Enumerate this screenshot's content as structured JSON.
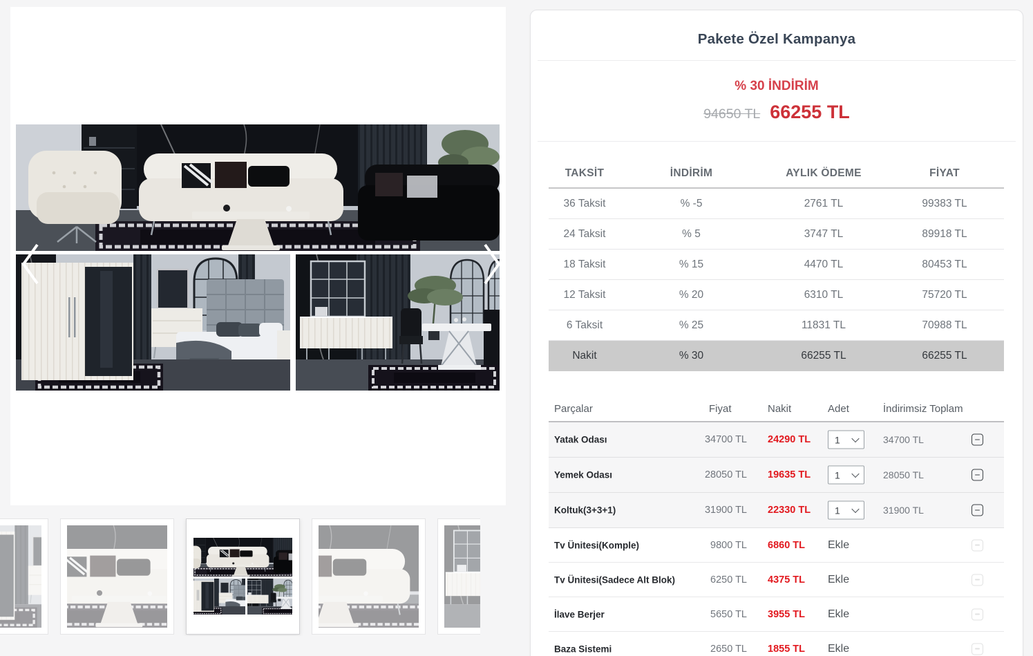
{
  "gallery": {
    "thumbnails": [
      {
        "name": "bedroom-detail",
        "selected": false
      },
      {
        "name": "living-room",
        "selected": false
      },
      {
        "name": "full-set-collage",
        "selected": true
      },
      {
        "name": "living-room-dark",
        "selected": false
      },
      {
        "name": "dining-console",
        "selected": false
      }
    ]
  },
  "campaign": {
    "title": "Pakete Özel Kampanya",
    "discount_label": "% 30 İNDİRİM",
    "old_price": "94650 TL",
    "new_price": "66255 TL"
  },
  "installments": {
    "headers": [
      "TAKSİT",
      "İNDİRİM",
      "AYLIK ÖDEME",
      "FİYAT"
    ],
    "rows": [
      {
        "taksit": "36 Taksit",
        "indirim": "% -5",
        "aylik": "2761 TL",
        "fiyat": "99383 TL",
        "highlight": false
      },
      {
        "taksit": "24 Taksit",
        "indirim": "% 5",
        "aylik": "3747 TL",
        "fiyat": "89918 TL",
        "highlight": false
      },
      {
        "taksit": "18 Taksit",
        "indirim": "% 15",
        "aylik": "4470 TL",
        "fiyat": "80453 TL",
        "highlight": false
      },
      {
        "taksit": "12 Taksit",
        "indirim": "% 20",
        "aylik": "6310 TL",
        "fiyat": "75720 TL",
        "highlight": false
      },
      {
        "taksit": "6 Taksit",
        "indirim": "% 25",
        "aylik": "11831 TL",
        "fiyat": "70988 TL",
        "highlight": false
      },
      {
        "taksit": "Nakit",
        "indirim": "% 30",
        "aylik": "66255 TL",
        "fiyat": "66255 TL",
        "highlight": true
      }
    ]
  },
  "parts": {
    "headers": [
      "Parçalar",
      "Fiyat",
      "Nakit",
      "Adet",
      "İndirimsiz Toplam"
    ],
    "add_label": "Ekle",
    "rows": [
      {
        "name": "Yatak Odası",
        "fiyat": "34700 TL",
        "nakit": "24290 TL",
        "adet": "1",
        "toplam": "34700 TL",
        "included": true
      },
      {
        "name": "Yemek Odası",
        "fiyat": "28050 TL",
        "nakit": "19635 TL",
        "adet": "1",
        "toplam": "28050 TL",
        "included": true
      },
      {
        "name": "Koltuk(3+3+1)",
        "fiyat": "31900 TL",
        "nakit": "22330 TL",
        "adet": "1",
        "toplam": "31900 TL",
        "included": true
      },
      {
        "name": "Tv Ünitesi(Komple)",
        "fiyat": "9800 TL",
        "nakit": "6860 TL",
        "included": false
      },
      {
        "name": "Tv Ünitesi(Sadece Alt Blok)",
        "fiyat": "6250 TL",
        "nakit": "4375 TL",
        "included": false
      },
      {
        "name": "İlave Berjer",
        "fiyat": "5650 TL",
        "nakit": "3955 TL",
        "included": false
      },
      {
        "name": "Baza Sistemi",
        "fiyat": "2650 TL",
        "nakit": "1855 TL",
        "included": false
      }
    ]
  },
  "icons": {
    "prev": "chevron-left",
    "next": "chevron-right",
    "quantity_dropdown": "chevron-down",
    "remove": "minus"
  },
  "colors": {
    "accent_red": "#d6414b",
    "price_red": "#cd3138",
    "cash_red": "#e1191f",
    "highlight_row": "#cbcbcb",
    "page_bg": "#f5f5f6"
  }
}
